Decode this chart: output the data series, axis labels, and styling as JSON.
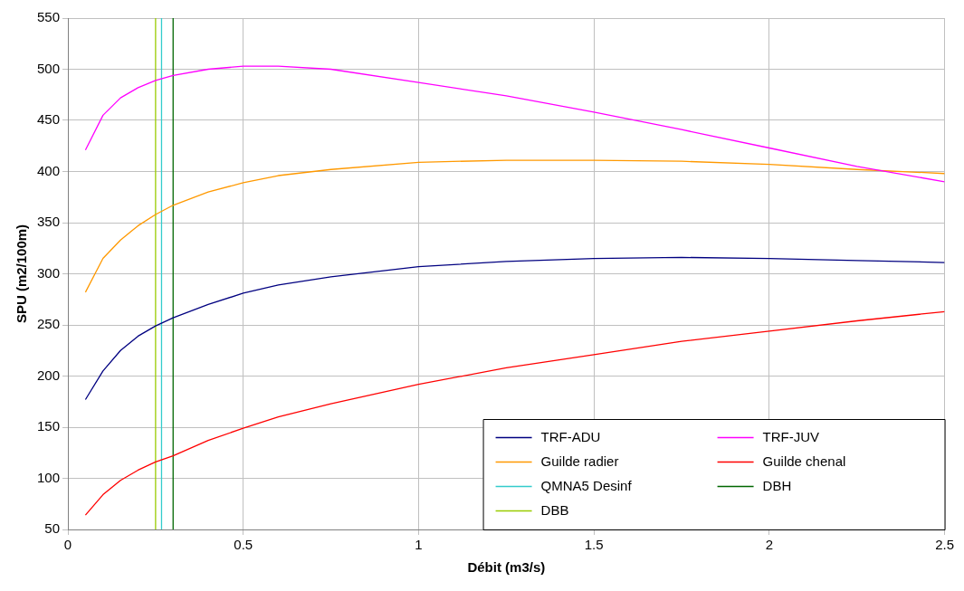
{
  "chart_data": {
    "type": "line",
    "xlabel": "Débit (m3/s)",
    "ylabel": "SPU (m2/100m)",
    "xlim": [
      0,
      2.5
    ],
    "xticks": [
      0,
      0.5,
      1,
      1.5,
      2,
      2.5
    ],
    "ylim": [
      50,
      550
    ],
    "yticks": [
      50,
      100,
      150,
      200,
      250,
      300,
      350,
      400,
      450,
      500,
      550
    ],
    "grid": true,
    "legend": "bottom right",
    "marker": "none",
    "line_style": "solid",
    "x": [
      0.05,
      0.1,
      0.15,
      0.2,
      0.25,
      0.3,
      0.4,
      0.5,
      0.6,
      0.75,
      1.0,
      1.25,
      1.5,
      1.75,
      2.0,
      2.25,
      2.5
    ],
    "series": [
      {
        "name": "TRF-ADU",
        "color": "#000080",
        "values": [
          177,
          205,
          225,
          239,
          249,
          257,
          270,
          281,
          289,
          297,
          307,
          312,
          315,
          316,
          315,
          313,
          311
        ]
      },
      {
        "name": "TRF-JUV",
        "color": "#ff00ff",
        "values": [
          421,
          455,
          472,
          482,
          489,
          494,
          500,
          503,
          503,
          500,
          487,
          474,
          458,
          441,
          423,
          405,
          390
        ]
      },
      {
        "name": "Guilde radier",
        "color": "#ff9900",
        "values": [
          282,
          315,
          333,
          347,
          358,
          367,
          380,
          389,
          396,
          402,
          409,
          411,
          411,
          410,
          407,
          402,
          398
        ]
      },
      {
        "name": "Guilde chenal",
        "color": "#ff0000",
        "values": [
          64,
          84,
          98,
          108,
          116,
          122,
          137,
          149,
          160,
          173,
          192,
          208,
          221,
          234,
          244,
          254,
          263
        ]
      },
      {
        "name": "QMNA5 Desinf",
        "color": "#33cccc",
        "x": [
          0.267,
          0.267
        ],
        "values": [
          50,
          550
        ]
      },
      {
        "name": "DBH",
        "color": "#006600",
        "x": [
          0.3,
          0.3
        ],
        "values": [
          50,
          550
        ]
      },
      {
        "name": "DBB",
        "color": "#99cc00",
        "x": [
          0.25,
          0.25
        ],
        "values": [
          50,
          550
        ]
      }
    ]
  }
}
